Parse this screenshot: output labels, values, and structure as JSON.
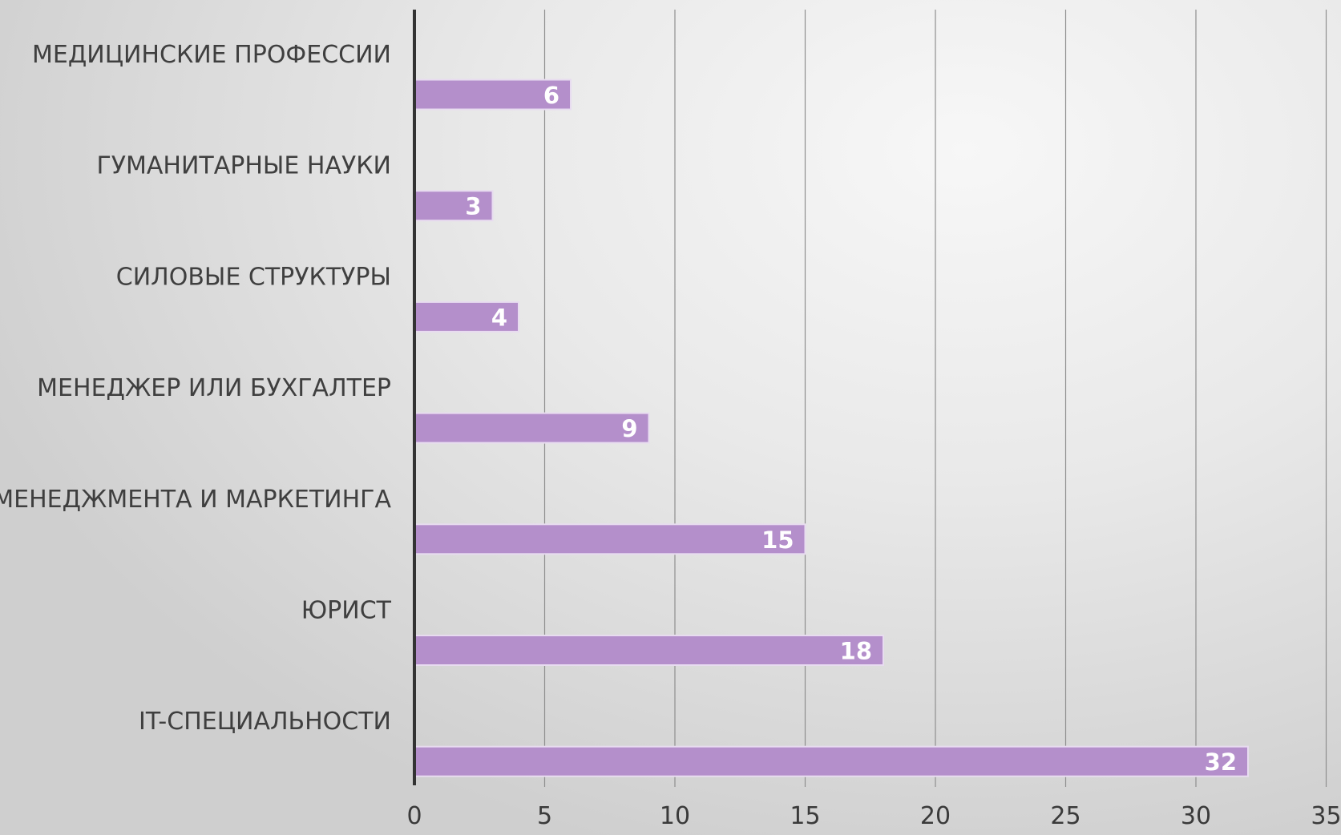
{
  "chart_data": {
    "type": "bar",
    "orientation": "horizontal",
    "categories": [
      "МЕДИЦИНСКИЕ ПРОФЕССИИ",
      "ГУМАНИТАРНЫЕ НАУКИ",
      "СИЛОВЫЕ СТРУКТУРЫ",
      "МЕНЕДЖЕР ИЛИ БУХГАЛТЕР",
      "МЕНЕДЖМЕНТА И МАРКЕТИНГА",
      "ЮРИСТ",
      "IT-СПЕЦИАЛЬНОСТИ"
    ],
    "values": [
      6,
      3,
      4,
      9,
      15,
      18,
      32
    ],
    "data_labels": [
      "6",
      "3",
      "4",
      "9",
      "15",
      "18",
      "32"
    ],
    "xlim": [
      0,
      35
    ],
    "x_ticks": [
      0,
      5,
      10,
      15,
      20,
      25,
      30,
      35
    ],
    "tick_labels": [
      "0",
      "5",
      "10",
      "15",
      "20",
      "25",
      "30",
      "35"
    ],
    "title": "",
    "xlabel": "",
    "ylabel": "",
    "grid": true,
    "legend": "none",
    "bar_color": "#b48fcb",
    "bar_border_color": "#e8dcf0",
    "label_color": "#ffffff",
    "axis_color": "#333333"
  }
}
